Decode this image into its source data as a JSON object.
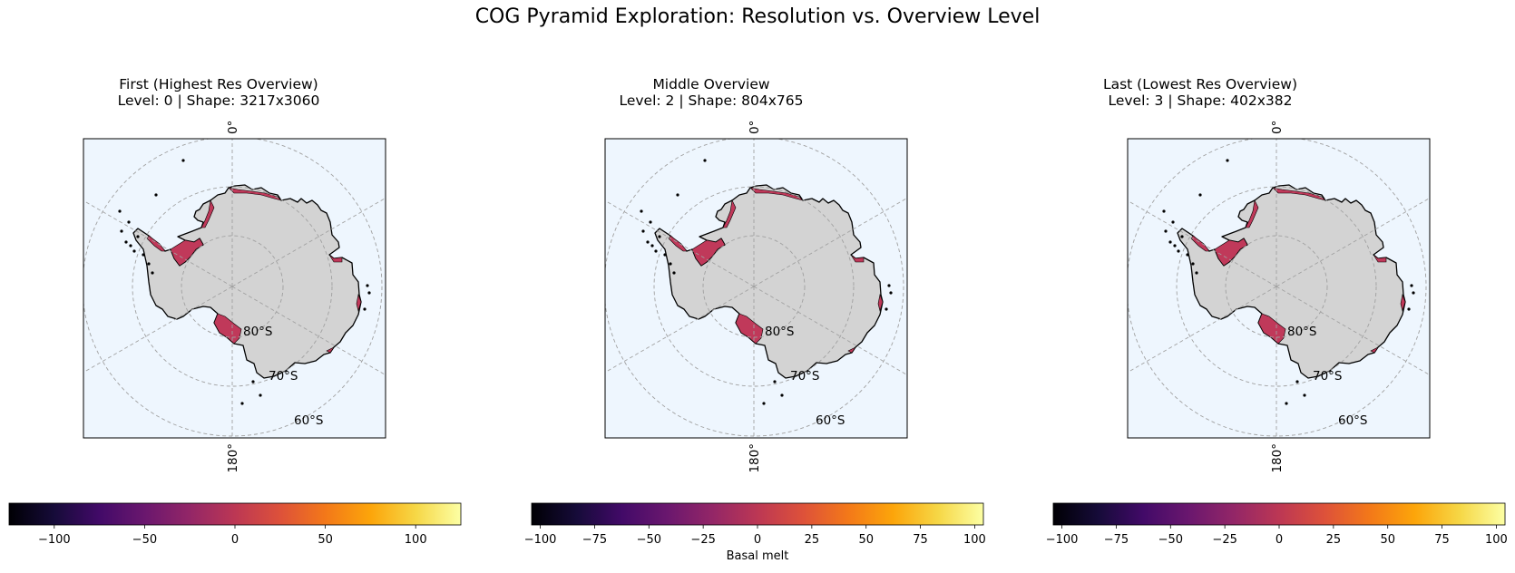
{
  "suptitle": "COG Pyramid Exploration: Resolution vs. Overview Level",
  "panels": [
    {
      "title_line1": "First (Highest Res Overview)",
      "title_line2": "Level: 0 | Shape: 3217x3060",
      "colorbar_ticks": [
        "−100",
        "−50",
        "0",
        "50",
        "100"
      ],
      "colorbar_tick_values": [
        -100,
        -50,
        0,
        50,
        100
      ],
      "colorbar_range": [
        -125,
        125
      ],
      "colorbar_label": ""
    },
    {
      "title_line1": "Middle Overview",
      "title_line2": "Level: 2 | Shape: 804x765",
      "colorbar_ticks": [
        "−100",
        "−75",
        "−50",
        "−25",
        "0",
        "25",
        "50",
        "75",
        "100"
      ],
      "colorbar_tick_values": [
        -100,
        -75,
        -50,
        -25,
        0,
        25,
        50,
        75,
        100
      ],
      "colorbar_range": [
        -104,
        104
      ],
      "colorbar_label": "Basal melt"
    },
    {
      "title_line1": "Last (Lowest Res Overview)",
      "title_line2": "Level: 3 | Shape: 402x382",
      "colorbar_ticks": [
        "−100",
        "−75",
        "−50",
        "−25",
        "0",
        "25",
        "50",
        "75",
        "100"
      ],
      "colorbar_tick_values": [
        -100,
        -75,
        -50,
        -25,
        0,
        25,
        50,
        75,
        100
      ],
      "colorbar_range": [
        -104,
        104
      ],
      "colorbar_label": ""
    }
  ],
  "gridline_labels": {
    "lon_top": "0°",
    "lon_bottom": "180°",
    "lat_80": "80°S",
    "lat_70": "70°S",
    "lat_60": "60°S"
  },
  "colors": {
    "ocean": "#eef6fe",
    "land": "#d3d3d3",
    "melt": "#c0395a",
    "grid": "#a0a0a0"
  },
  "colormap": "inferno"
}
